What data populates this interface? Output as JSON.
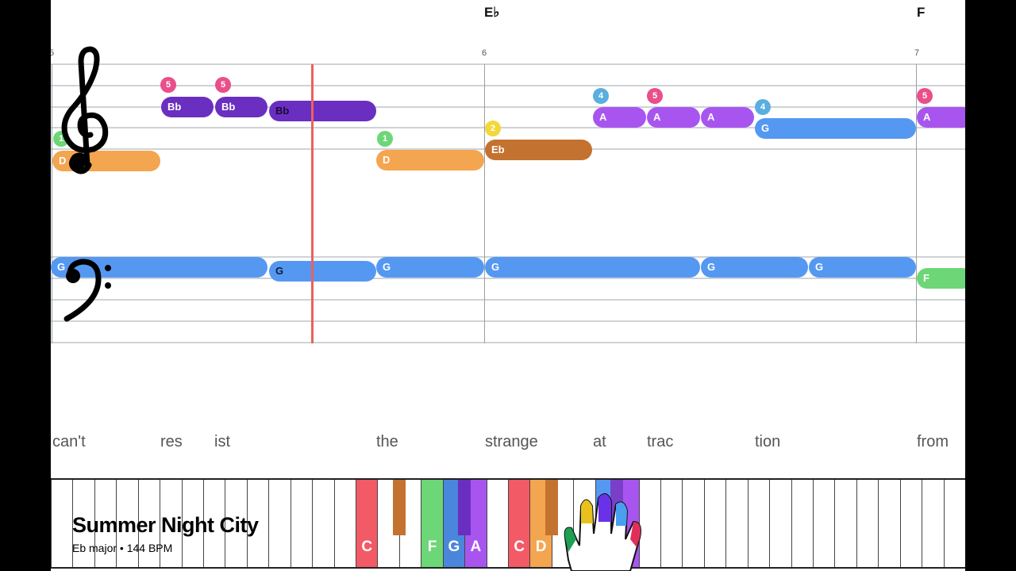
{
  "song": {
    "title": "Summer Night City",
    "subtitle": "Eb major • 144 BPM"
  },
  "chords": [
    "E♭",
    "F"
  ],
  "measures": [
    "5",
    "6",
    "7"
  ],
  "colors": {
    "C": "#f25a66",
    "D": "#f4a550",
    "Eb": "#c4722f",
    "F": "#6dd676",
    "G": "#5598f2",
    "A": "#a855f0",
    "Bb": "#6a2fc0",
    "playhead": "#e8625e"
  },
  "treble_notes": [
    {
      "label": "D",
      "finger": "1"
    },
    {
      "label": "Bb",
      "finger": "5"
    },
    {
      "label": "Bb",
      "finger": "5"
    },
    {
      "label": "Bb",
      "finger": ""
    },
    {
      "label": "D",
      "finger": "1"
    },
    {
      "label": "Eb",
      "finger": "2"
    },
    {
      "label": "A",
      "finger": "4"
    },
    {
      "label": "A",
      "finger": "5"
    },
    {
      "label": "A",
      "finger": ""
    },
    {
      "label": "G",
      "finger": "4"
    },
    {
      "label": "A",
      "finger": "5"
    }
  ],
  "bass_notes": [
    {
      "label": "G"
    },
    {
      "label": "G"
    },
    {
      "label": "G"
    },
    {
      "label": "G"
    },
    {
      "label": "G"
    },
    {
      "label": "G"
    },
    {
      "label": "F"
    }
  ],
  "lyrics": [
    "can't",
    "res",
    "ist",
    "the",
    "strange",
    "at",
    "trac",
    "tion",
    "from"
  ],
  "keyboard": {
    "labels": [
      "C",
      "F",
      "G",
      "A",
      "C",
      "D"
    ]
  }
}
